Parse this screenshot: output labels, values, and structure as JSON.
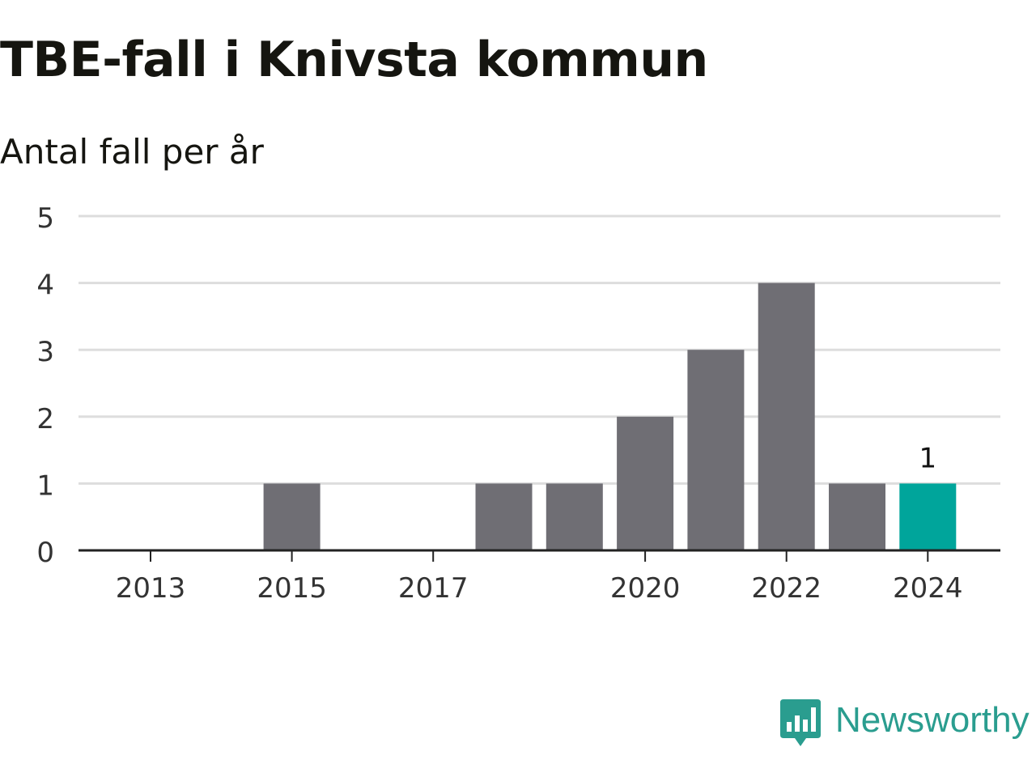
{
  "header": {
    "title": "TBE-fall i Knivsta kommun",
    "subtitle": "Antal fall per år"
  },
  "brand": {
    "name": "Newsworthy",
    "logo_icon": "bar-chart-speech-bubble-icon",
    "color": "#2a9d8f"
  },
  "chart_data": {
    "type": "bar",
    "title": "TBE-fall i Knivsta kommun",
    "subtitle": "Antal fall per år",
    "categories": [
      "2013",
      "2014",
      "2015",
      "2016",
      "2017",
      "2018",
      "2019",
      "2020",
      "2021",
      "2022",
      "2023",
      "2024"
    ],
    "values": [
      0,
      0,
      1,
      0,
      0,
      1,
      1,
      2,
      3,
      4,
      1,
      1
    ],
    "x_tick_labels": [
      "2013",
      "2015",
      "2017",
      "2020",
      "2022",
      "2024"
    ],
    "y_ticks": [
      0,
      1,
      2,
      3,
      4,
      5
    ],
    "ylim": [
      0,
      5
    ],
    "grid": true,
    "highlight": {
      "category": "2024",
      "value": 1,
      "label": "1"
    },
    "colors": {
      "bar": "#6f6e74",
      "highlight": "#00a59b",
      "grid": "#dddddd",
      "axis": "#222222",
      "tick_text": "#333333"
    }
  }
}
